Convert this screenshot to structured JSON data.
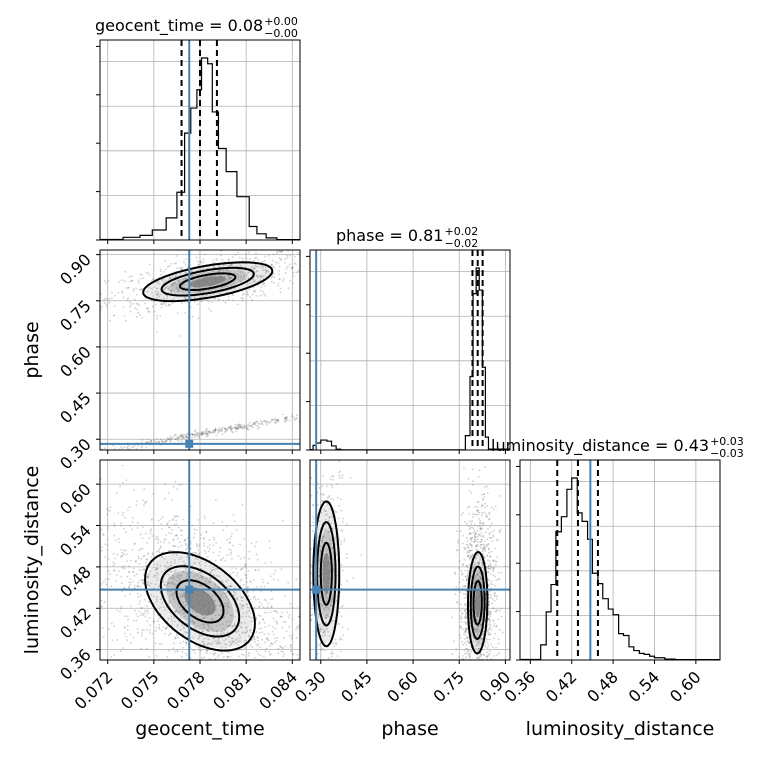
{
  "chart_data": {
    "type": "corner",
    "parameters": [
      "geocent_time",
      "phase",
      "luminosity_distance"
    ],
    "axis_labels": [
      "geocent_time",
      "phase",
      "luminosity_distance"
    ],
    "ranges": {
      "geocent_time": [
        0.0715,
        0.0845
      ],
      "phase": [
        0.265,
        0.915
      ],
      "luminosity_distance": [
        0.345,
        0.635
      ]
    },
    "ticks": {
      "geocent_time": [
        "0.072",
        "0.075",
        "0.078",
        "0.081",
        "0.084"
      ],
      "phase": [
        "0.30",
        "0.45",
        "0.60",
        "0.75",
        "0.90"
      ],
      "luminosity_distance": [
        "0.36",
        "0.42",
        "0.48",
        "0.54",
        "0.60"
      ]
    },
    "truths": {
      "geocent_time": 0.0773,
      "phase": 0.285,
      "luminosity_distance": 0.447
    },
    "titles": [
      {
        "param": "geocent_time",
        "text": "geocent_time = 0.08",
        "plus": "+0.00",
        "minus": "−0.00"
      },
      {
        "param": "phase",
        "text": "phase = 0.81",
        "plus": "+0.02",
        "minus": "−0.02"
      },
      {
        "param": "luminosity_distance",
        "text": "luminosity_distance = 0.43",
        "plus": "+0.03",
        "minus": "−0.03"
      }
    ],
    "quantiles": {
      "geocent_time": [
        0.0768,
        0.078,
        0.0791
      ],
      "phase": [
        0.793,
        0.81,
        0.826
      ],
      "luminosity_distance": [
        0.399,
        0.429,
        0.458
      ]
    },
    "histograms": {
      "geocent_time": {
        "edges": [
          0.0715,
          0.073,
          0.0741,
          0.0749,
          0.0758,
          0.0765,
          0.077,
          0.0774,
          0.0778,
          0.0781,
          0.0785,
          0.0788,
          0.0792,
          0.0797,
          0.0804,
          0.0812,
          0.0817,
          0.0823,
          0.083,
          0.0845
        ],
        "counts": [
          0.3,
          1.4,
          2.4,
          5.2,
          11.5,
          24.8,
          55.5,
          68.5,
          78.0,
          94.5,
          91.5,
          66.5,
          47.5,
          35.5,
          22.5,
          7.0,
          3.2,
          1.1,
          0.2
        ]
      },
      "phase": {
        "edges": [
          0.265,
          0.275,
          0.285,
          0.3,
          0.32,
          0.335,
          0.35,
          0.365,
          0.77,
          0.785,
          0.795,
          0.805,
          0.815,
          0.825,
          0.835,
          0.845,
          0.915
        ],
        "counts": [
          0.2,
          2.5,
          3.8,
          5.4,
          4.8,
          2.2,
          0.4,
          0.1,
          7.8,
          40.0,
          85.0,
          99.0,
          87.0,
          45.0,
          7.0,
          0.5
        ]
      },
      "luminosity_distance": {
        "edges": [
          0.345,
          0.375,
          0.383,
          0.39,
          0.397,
          0.405,
          0.413,
          0.42,
          0.428,
          0.435,
          0.443,
          0.45,
          0.458,
          0.465,
          0.473,
          0.48,
          0.488,
          0.495,
          0.503,
          0.51,
          0.518,
          0.525,
          0.533,
          0.54,
          0.555,
          0.57,
          0.635
        ],
        "counts": [
          0.3,
          8.0,
          25.5,
          40.0,
          68.0,
          76.0,
          90.5,
          96.5,
          78.0,
          73.5,
          64.0,
          46.0,
          40.5,
          32.5,
          27.0,
          24.0,
          14.0,
          13.0,
          7.0,
          5.0,
          3.5,
          3.0,
          2.0,
          1.2,
          0.5,
          0.2
        ]
      }
    },
    "blobs": [
      {
        "pair": [
          "geocent_time",
          "phase"
        ],
        "cx": 0.0785,
        "cy": 0.812,
        "sx": 0.002,
        "sy": 0.03,
        "rho": 0.55,
        "n": 900
      },
      {
        "pair": [
          "geocent_time",
          "phase"
        ],
        "cx": 0.0795,
        "cy": 0.33,
        "sx": 0.0028,
        "sy": 0.025,
        "rho": 0.99,
        "n": 420
      },
      {
        "pair": [
          "geocent_time",
          "luminosity_distance"
        ],
        "cx": 0.078,
        "cy": 0.43,
        "sx": 0.0017,
        "sy": 0.034,
        "rho": -0.45,
        "n": 1700
      },
      {
        "pair": [
          "phase",
          "luminosity_distance"
        ],
        "cx": 0.81,
        "cy": 0.428,
        "sx": 0.015,
        "sy": 0.035,
        "rho": 0.05,
        "n": 1200
      },
      {
        "pair": [
          "phase",
          "luminosity_distance"
        ],
        "cx": 0.318,
        "cy": 0.47,
        "sx": 0.02,
        "sy": 0.05,
        "rho": 0.0,
        "n": 520
      }
    ],
    "grid": true
  }
}
